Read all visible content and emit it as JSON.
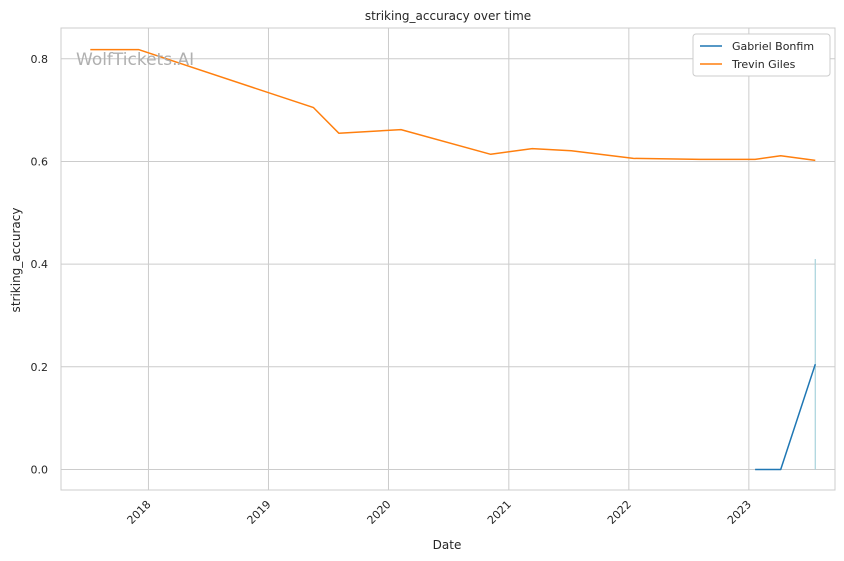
{
  "chart_data": {
    "type": "line",
    "title": "striking_accuracy over time",
    "xlabel": "Date",
    "ylabel": "striking_accuracy",
    "watermark": "WolfTickets.AI",
    "x_ticks": [
      "2018",
      "2019",
      "2020",
      "2021",
      "2022",
      "2023"
    ],
    "y_ticks": [
      "0.0",
      "0.2",
      "0.4",
      "0.6",
      "0.8"
    ],
    "xlim": [
      "2017-04-10",
      "2023-09-20"
    ],
    "ylim": [
      -0.04,
      0.86
    ],
    "grid": true,
    "legend_position": "top-right",
    "series": [
      {
        "name": "Gabriel Bonfim",
        "color": "#1f77b4",
        "points": [
          {
            "date": "2023-01-20",
            "value": 0.0
          },
          {
            "date": "2023-04-08",
            "value": 0.0
          },
          {
            "date": "2023-07-22",
            "value": 0.205
          }
        ],
        "band": {
          "date": "2023-07-22",
          "low": 0.0,
          "high": 0.41,
          "color": "#a7d3db"
        }
      },
      {
        "name": "Trevin Giles",
        "color": "#ff7f0e",
        "points": [
          {
            "date": "2017-07-08",
            "value": 0.818
          },
          {
            "date": "2017-12-02",
            "value": 0.818
          },
          {
            "date": "2019-05-18",
            "value": 0.705
          },
          {
            "date": "2019-08-03",
            "value": 0.655
          },
          {
            "date": "2020-02-08",
            "value": 0.662
          },
          {
            "date": "2020-11-07",
            "value": 0.614
          },
          {
            "date": "2021-03-13",
            "value": 0.625
          },
          {
            "date": "2021-07-10",
            "value": 0.621
          },
          {
            "date": "2022-01-15",
            "value": 0.606
          },
          {
            "date": "2022-08-06",
            "value": 0.604
          },
          {
            "date": "2023-01-20",
            "value": 0.604
          },
          {
            "date": "2023-04-08",
            "value": 0.611
          },
          {
            "date": "2023-07-22",
            "value": 0.602
          }
        ]
      }
    ]
  }
}
